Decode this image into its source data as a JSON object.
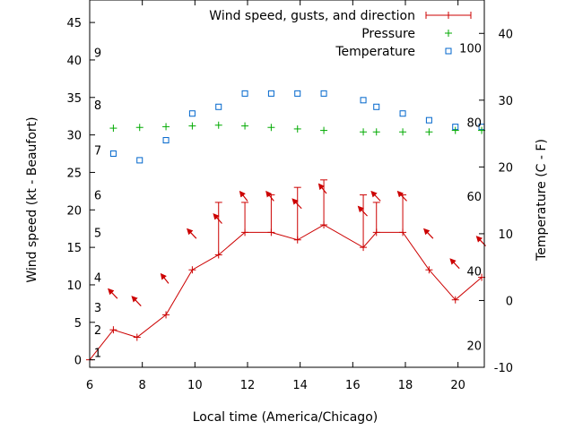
{
  "chart_data": {
    "type": "line",
    "xlabel": "Local time (America/Chicago)",
    "ylabel_left": "Wind speed (kt - Beaufort)",
    "ylabel_right": "Temperature (C - F)",
    "xlim": [
      6,
      21
    ],
    "ylim_left": [
      -1,
      48
    ],
    "ylim_right": [
      -10,
      45
    ],
    "x_ticks": [
      6,
      8,
      10,
      12,
      14,
      16,
      18,
      20
    ],
    "y_ticks_left": [
      0,
      5,
      10,
      15,
      20,
      25,
      30,
      35,
      40,
      45
    ],
    "y_ticks_right": [
      -10,
      0,
      10,
      20,
      30,
      40
    ],
    "grid": false,
    "legend_position": "top-right",
    "legend": [
      "Wind speed, gusts, and direction",
      "Pressure",
      "Temperature"
    ],
    "colors": {
      "wind": "#cc0000",
      "pressure": "#00aa00",
      "temperature": "#0066cc"
    },
    "beaufort_labels": [
      {
        "label": "1",
        "y": 1
      },
      {
        "label": "2",
        "y": 4
      },
      {
        "label": "3",
        "y": 7
      },
      {
        "label": "4",
        "y": 11
      },
      {
        "label": "5",
        "y": 17
      },
      {
        "label": "6",
        "y": 22
      },
      {
        "label": "7",
        "y": 28
      },
      {
        "label": "8",
        "y": 34
      },
      {
        "label": "9",
        "y": 41
      }
    ],
    "fahrenheit_labels": [
      {
        "label": "20",
        "c": -6.7
      },
      {
        "label": "40",
        "c": 4.4
      },
      {
        "label": "60",
        "c": 15.6
      },
      {
        "label": "80",
        "c": 26.7
      },
      {
        "label": "100",
        "c": 37.8
      }
    ],
    "series": [
      {
        "name": "Wind speed, gusts, and direction",
        "x": [
          6,
          6.9,
          7.8,
          8.9,
          9.9,
          10.9,
          11.9,
          12.9,
          13.9,
          14.9,
          16.4,
          16.9,
          17.9,
          18.9,
          19.9,
          20.9
        ],
        "speed": [
          0,
          4,
          3,
          6,
          12,
          14,
          17,
          17,
          16,
          18,
          15,
          17,
          17,
          12,
          8,
          11
        ],
        "gust": [
          null,
          null,
          null,
          null,
          null,
          21,
          21,
          22,
          23,
          24,
          22,
          21,
          22,
          null,
          null,
          null
        ],
        "direction_deg": [
          null,
          135,
          135,
          165,
          135,
          150,
          165,
          165,
          135,
          165,
          135,
          135,
          135,
          135,
          135,
          135
        ]
      },
      {
        "name": "Pressure",
        "x": [
          6.9,
          7.9,
          8.9,
          9.9,
          10.9,
          11.9,
          12.9,
          13.9,
          14.9,
          16.4,
          16.9,
          17.9,
          18.9,
          19.9,
          20.9
        ],
        "y": [
          30.9,
          31.0,
          31.1,
          31.2,
          31.3,
          31.2,
          31.0,
          30.8,
          30.6,
          30.4,
          30.4,
          30.4,
          30.4,
          30.6,
          30.6
        ]
      },
      {
        "name": "Temperature",
        "x": [
          6.9,
          7.9,
          8.9,
          9.9,
          10.9,
          11.9,
          12.9,
          13.9,
          14.9,
          16.4,
          16.9,
          17.9,
          18.9,
          19.9,
          20.9
        ],
        "y": [
          22.0,
          21.0,
          24.0,
          28.0,
          29.0,
          31.0,
          31.0,
          31.0,
          31.0,
          30.0,
          29.0,
          28.0,
          27.0,
          26.0,
          26.0
        ]
      }
    ]
  }
}
